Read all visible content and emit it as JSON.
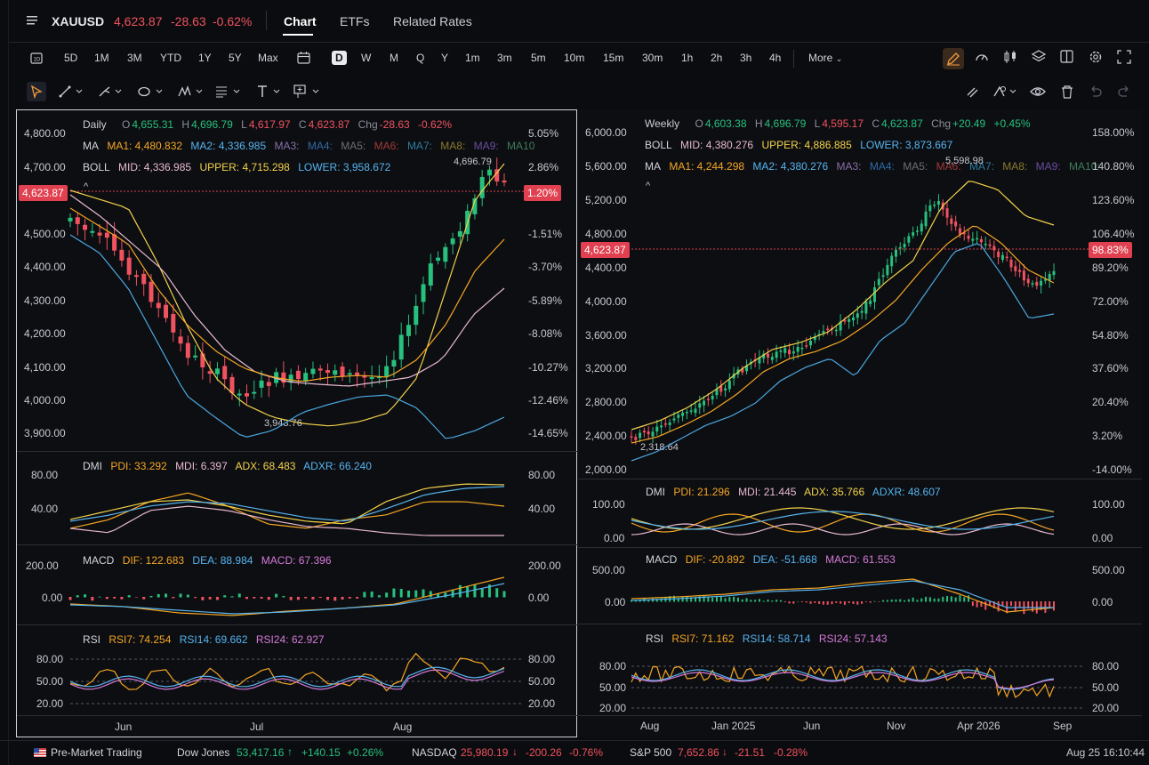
{
  "header": {
    "symbol": "XAUUSD",
    "price": "4,623.87",
    "change": "-28.63",
    "change_pct": "-0.62%",
    "tabs": [
      "Chart",
      "ETFs",
      "Related Rates"
    ],
    "active_tab": "Chart"
  },
  "toolbar": {
    "ranges": [
      "5D",
      "1M",
      "3M",
      "YTD",
      "1Y",
      "5Y",
      "Max"
    ],
    "intervals": [
      "D",
      "W",
      "M",
      "Q",
      "Y",
      "1m",
      "3m",
      "5m",
      "10m",
      "15m",
      "30m",
      "1h",
      "2h",
      "3h",
      "4h"
    ],
    "selected_interval": "D",
    "more_label": "More"
  },
  "left_chart": {
    "period": "Daily",
    "ohlc": {
      "o_label": "O",
      "o": "4,655.31",
      "h_label": "H",
      "h": "4,696.79",
      "l_label": "L",
      "l": "4,617.97",
      "c_label": "C",
      "c": "4,623.87",
      "chg_label": "Chg",
      "chg": "-28.63",
      "chg_pct": "-0.62%"
    },
    "ma": {
      "label": "MA",
      "ma1": "MA1: 4,480.832",
      "ma2": "MA2: 4,336.985",
      "rest": [
        "MA3:",
        "MA4:",
        "MA5:",
        "MA6:",
        "MA7:",
        "MA8:",
        "MA9:",
        "MA10"
      ]
    },
    "boll": {
      "label": "BOLL",
      "mid": "MID: 4,336.985",
      "upper": "UPPER: 4,715.298",
      "lower": "LOWER: 3,958.672"
    },
    "price_axis": [
      "4,800.00",
      "4,700.00",
      "4,623.87",
      "4,500.00",
      "4,400.00",
      "4,300.00",
      "4,200.00",
      "4,100.00",
      "4,000.00",
      "3,900.00"
    ],
    "pct_axis": [
      "5.05%",
      "2.86%",
      "1.20%",
      "-1.51%",
      "-3.70%",
      "-5.89%",
      "-8.08%",
      "-10.27%",
      "-12.46%",
      "-14.65%"
    ],
    "current_price_badge": "4,623.87",
    "current_pct_badge": "1.20%",
    "high_marker": "4,696.79",
    "low_marker": "3,943.76",
    "dmi": {
      "label": "DMI",
      "pdi": "PDI: 33.292",
      "mdi": "MDI: 6.397",
      "adx": "ADX: 68.483",
      "adxr": "ADXR: 66.240",
      "axis": [
        "80.00",
        "40.00"
      ]
    },
    "macd": {
      "label": "MACD",
      "dif": "DIF: 122.683",
      "dea": "DEA: 88.984",
      "macd": "MACD: 67.396",
      "axis": [
        "200.00",
        "0.00"
      ]
    },
    "rsi": {
      "label": "RSI",
      "rsi7": "RSI7: 74.254",
      "rsi14": "RSI14: 69.662",
      "rsi24": "RSI24: 62.927",
      "axis": [
        "80.00",
        "50.00",
        "20.00"
      ]
    },
    "x_axis": [
      "Jun",
      "Jul",
      "Aug"
    ]
  },
  "right_chart": {
    "period": "Weekly",
    "ohlc": {
      "o_label": "O",
      "o": "4,603.38",
      "h_label": "H",
      "h": "4,696.79",
      "l_label": "L",
      "l": "4,595.17",
      "c_label": "C",
      "c": "4,623.87",
      "chg_label": "Chg",
      "chg": "+20.49",
      "chg_pct": "+0.45%"
    },
    "boll": {
      "label": "BOLL",
      "mid": "MID: 4,380.276",
      "upper": "UPPER: 4,886.885",
      "lower": "LOWER: 3,873.667"
    },
    "ma": {
      "label": "MA",
      "ma1": "MA1: 4,244.298",
      "ma2": "MA2: 4,380.276",
      "rest": [
        "MA3:",
        "MA4:",
        "MA5:",
        "MA6:",
        "MA7:",
        "MA8:",
        "MA9:",
        "MA10:"
      ]
    },
    "price_axis": [
      "6,000.00",
      "5,600.00",
      "5,200.00",
      "4,800.00",
      "4,623.87",
      "4,400.00",
      "4,000.00",
      "3,600.00",
      "3,200.00",
      "2,800.00",
      "2,400.00",
      "2,000.00"
    ],
    "pct_axis": [
      "158.00%",
      "140.80%",
      "123.60%",
      "106.40%",
      "98.83%",
      "89.20%",
      "72.00%",
      "54.80%",
      "37.60%",
      "20.40%",
      "3.20%",
      "-14.00%"
    ],
    "current_price_badge": "4,623.87",
    "current_pct_badge": "98.83%",
    "high_marker": "5,598.98",
    "low_marker": "2,318.64",
    "dmi": {
      "label": "DMI",
      "pdi": "PDI: 21.296",
      "mdi": "MDI: 21.445",
      "adx": "ADX: 35.766",
      "adxr": "ADXR: 48.607",
      "axis": [
        "100.00",
        "0.00"
      ]
    },
    "macd": {
      "label": "MACD",
      "dif": "DIF: -20.892",
      "dea": "DEA: -51.668",
      "macd": "MACD: 61.553",
      "axis": [
        "500.00",
        "0.00"
      ]
    },
    "rsi": {
      "label": "RSI",
      "rsi7": "RSI7: 71.162",
      "rsi14": "RSI14: 58.714",
      "rsi24": "RSI24: 57.143",
      "axis": [
        "80.00",
        "50.00",
        "20.00"
      ]
    },
    "x_axis": [
      "Aug",
      "Jan 2025",
      "Jun",
      "Nov",
      "Apr 2026",
      "Sep"
    ]
  },
  "ticker": {
    "premarket": "Pre-Market Trading",
    "items": [
      {
        "name": "Dow Jones",
        "value": "53,417.16",
        "chg": "+140.15",
        "pct": "+0.26%",
        "dir": "up"
      },
      {
        "name": "NASDAQ",
        "value": "25,980.19",
        "chg": "-200.26",
        "pct": "-0.76%",
        "dir": "down"
      },
      {
        "name": "S&P 500",
        "value": "7,652.86",
        "chg": "-21.51",
        "pct": "-0.28%",
        "dir": "down"
      }
    ],
    "timestamp": "Aug 25 16:10:44"
  },
  "colors": {
    "up": "#27c07d",
    "down": "#f0525f",
    "ma1": "#f5a623",
    "ma2": "#55b4f0",
    "boll_upper": "#f2d24b",
    "boll_mid": "#e8b9d2",
    "boll_lower": "#4aa8e0"
  }
}
